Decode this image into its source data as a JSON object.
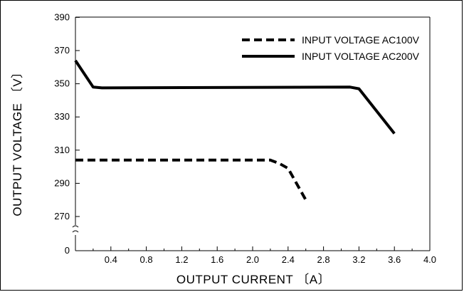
{
  "chart_data": {
    "type": "line",
    "xlabel": "OUTPUT CURRENT 〔A〕",
    "ylabel": "OUTPUT VOLTAGE 〔V〕",
    "xlim": [
      0,
      4.0
    ],
    "ylim_display": [
      270,
      390
    ],
    "axis_break": true,
    "x_ticks": [
      "0.4",
      "0.8",
      "1.2",
      "1.6",
      "2.0",
      "2.4",
      "2.8",
      "3.2",
      "3.6",
      "4.0"
    ],
    "y_ticks": [
      "0",
      "270",
      "290",
      "310",
      "330",
      "350",
      "370",
      "390"
    ],
    "grid": false,
    "legend_position": "top-right",
    "series": [
      {
        "name": "INPUT VOLTAGE AC100V",
        "style": "dashed",
        "color": "#000000",
        "x": [
          0,
          2.2,
          2.3,
          2.4,
          2.6
        ],
        "y": [
          304,
          304,
          302,
          299,
          280
        ]
      },
      {
        "name": "INPUT VOLTAGE AC200V",
        "style": "solid",
        "color": "#000000",
        "x": [
          0,
          0.2,
          0.3,
          3.1,
          3.2,
          3.6
        ],
        "y": [
          364,
          348,
          347.5,
          348,
          347,
          320
        ]
      }
    ]
  }
}
